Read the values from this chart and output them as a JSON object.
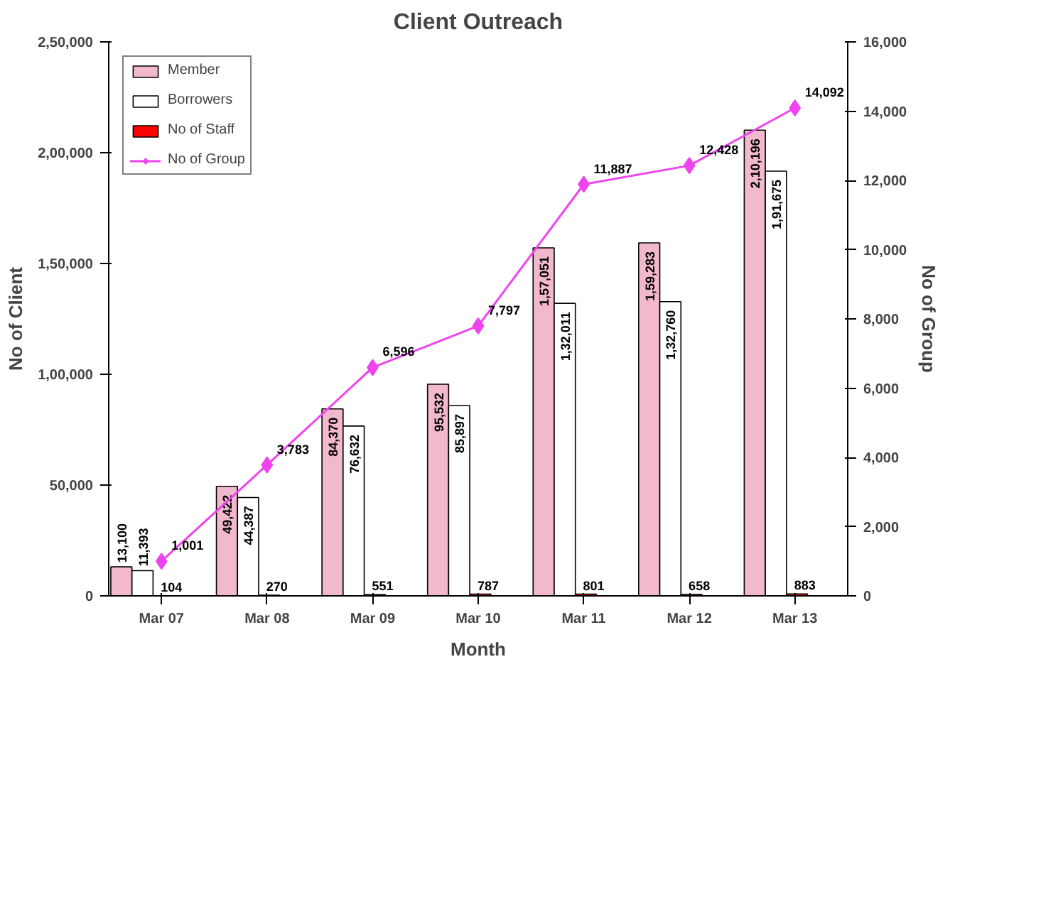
{
  "chart_data": {
    "type": "bar",
    "title": "Client Outreach",
    "xlabel": "Month",
    "ylabel": "No of Client",
    "y2label": "No of Group",
    "categories": [
      "Mar 07",
      "Mar 08",
      "Mar 09",
      "Mar 10",
      "Mar 11",
      "Mar 12",
      "Mar 13"
    ],
    "series": [
      {
        "name": "Member",
        "color": "#f2b8cc",
        "values": [
          13100,
          49422,
          84370,
          95532,
          157051,
          159283,
          210196
        ],
        "value_labels": [
          "13,100",
          "49,422",
          "84,370",
          "95,532",
          "1,57,051",
          "1,59,283",
          "2,10,196"
        ]
      },
      {
        "name": "Borrowers",
        "color": "#ffffff",
        "values": [
          11393,
          44387,
          76632,
          85897,
          132011,
          132760,
          191675
        ],
        "value_labels": [
          "11,393",
          "44,387",
          "76,632",
          "85,897",
          "1,32,011",
          "1,32,760",
          "1,91,675"
        ]
      },
      {
        "name": "No of Staff",
        "color": "#ff0000",
        "values": [
          104,
          270,
          551,
          787,
          801,
          658,
          883
        ],
        "value_labels": [
          "104",
          "270",
          "551",
          "787",
          "801",
          "658",
          "883"
        ]
      },
      {
        "name": "No of Group",
        "type": "line",
        "axis": "y2",
        "color": "#ee44ee",
        "marker": "diamond",
        "values": [
          1001,
          3783,
          6596,
          7797,
          11887,
          12428,
          14092
        ],
        "value_labels": [
          "1,001",
          "3,783",
          "6,596",
          "7,797",
          "11,887",
          "12,428",
          "14,092"
        ]
      }
    ],
    "ylim": [
      0,
      250000
    ],
    "yticks": [
      0,
      {
        "value": 50000,
        "label": "50,000"
      },
      {
        "value": 100000,
        "label": "1,00,000"
      },
      {
        "value": 150000,
        "label": "1,50,000"
      },
      {
        "value": 200000,
        "label": "2,00,000"
      },
      {
        "value": 250000,
        "label": "2,50,000"
      }
    ],
    "y2lim": [
      0,
      16000
    ],
    "y2ticks": [
      0,
      {
        "value": 2000,
        "label": "2,000"
      },
      {
        "value": 4000,
        "label": "4,000"
      },
      {
        "value": 6000,
        "label": "6,000"
      },
      {
        "value": 8000,
        "label": "8,000"
      },
      {
        "value": 10000,
        "label": "10,000"
      },
      {
        "value": 12000,
        "label": "12,000"
      },
      {
        "value": 14000,
        "label": "14,000"
      },
      {
        "value": 16000,
        "label": "16,000"
      }
    ],
    "legend": "top left",
    "grid": false
  }
}
